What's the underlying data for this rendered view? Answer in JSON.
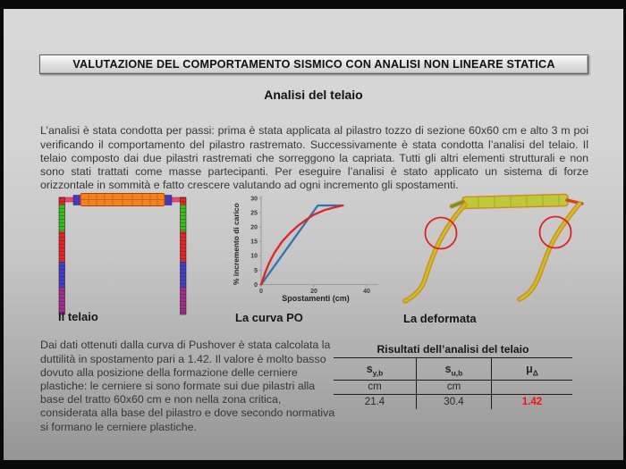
{
  "slide": {
    "title": "VALUTAZIONE DEL COMPORTAMENTO SISMICO CON ANALISI NON LINEARE STATICA",
    "subtitle": "Analisi del telaio",
    "intro_paragraph": "L’analisi è stata condotta per passi: prima è stata applicata al pilastro tozzo di sezione 60x60 cm e alto 3 m poi verificando il comportamento del pilastro rastremato. Successivamente è stata condotta l’analisi del telaio. Il telaio composto dai due pilastri rastremati che sorreggono la capriata. Tutti gli altri elementi strutturali e non sono stati trattati come masse partecipanti. Per eseguire l’analisi è stato applicato un sistema di forze orizzontale in sommità e fatto crescere valutando ad ogni incremento gli spostamenti.",
    "discussion_paragraph": "Dai dati ottenuti dalla curva di Pushover è stata calcolata la duttilità in spostamento pari a 1.42. Il valore è molto basso dovuto alla posizione della formazione delle cerniere plastiche: le cerniere si sono formate sui due pilastri alla base del tratto 60x60 cm e non nella zona critica, considerata alla base del pilastro e dove secondo normativa si formano le cerniere plastiche."
  },
  "figures": {
    "frame_caption": "Il telaio",
    "curve_caption": "La curva PO",
    "deformed_caption": "La deformata"
  },
  "chart_data": {
    "type": "line",
    "title": "",
    "xlabel": "Spostamenti (cm)",
    "ylabel": "% incremento di carico",
    "xlim": [
      0,
      45
    ],
    "ylim": [
      0,
      30
    ],
    "x_ticks": [
      0,
      20,
      40
    ],
    "y_ticks": [
      0,
      5,
      10,
      15,
      20,
      25,
      30
    ],
    "grid": false,
    "legend": false,
    "series": [
      {
        "name": "bilineare",
        "color": "#2e74b5",
        "points": [
          [
            0,
            0
          ],
          [
            21.5,
            27.5
          ],
          [
            31,
            27.5
          ]
        ]
      },
      {
        "name": "pushover",
        "color": "#e02424",
        "points": [
          [
            0,
            0
          ],
          [
            1.5,
            4
          ],
          [
            3,
            7.5
          ],
          [
            5,
            11
          ],
          [
            8,
            15
          ],
          [
            11,
            18
          ],
          [
            14,
            20.5
          ],
          [
            17,
            22.5
          ],
          [
            20,
            24.3
          ],
          [
            24,
            25.9
          ],
          [
            28,
            26.9
          ],
          [
            31,
            27.5
          ]
        ]
      }
    ]
  },
  "table": {
    "title": "Risultati dell’analisi del telaio",
    "columns": [
      {
        "base": "s",
        "sub": "y,b"
      },
      {
        "base": "s",
        "sub": "u,b"
      },
      {
        "base": "μ",
        "sub": "Δ"
      }
    ],
    "units": [
      "cm",
      "cm",
      ""
    ],
    "values": [
      "21.4",
      "30.4",
      "1.42"
    ],
    "highlight_value_color": "#fb0e0e"
  },
  "colors": {
    "slide_bg_top": "#d8d8d8",
    "slide_bg_bottom": "#959595",
    "frame_beam_orange": "#f58220",
    "frame_green": "#35c01d",
    "frame_red": "#e02828",
    "frame_blue": "#4040c8",
    "frame_purple": "#a03090",
    "deformed_yellow_green": "#b9c531",
    "deformed_orange": "#e08818",
    "hinge_circle_red": "#e02020"
  }
}
